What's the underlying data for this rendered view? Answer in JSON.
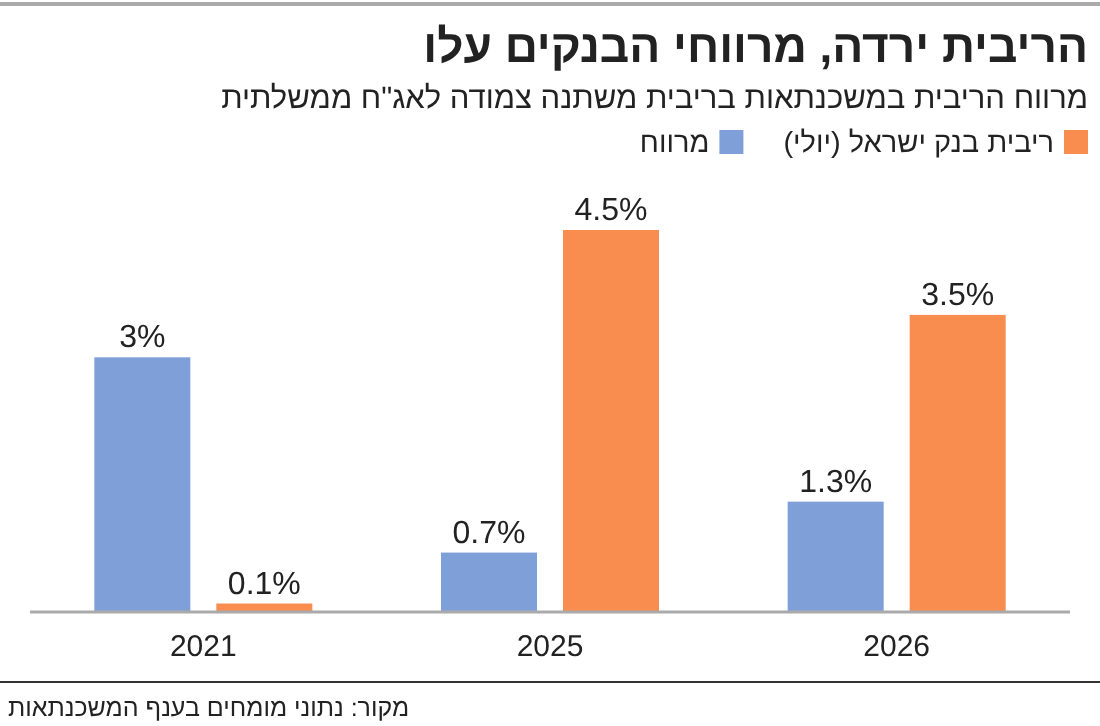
{
  "chart_data": {
    "type": "bar",
    "title": "הריבית ירדה, מרווחי הבנקים עלו",
    "subtitle": "מרווח הריבית במשכנתאות בריבית משתנה צמודה לאג\"ח ממשלתית",
    "categories": [
      "2021",
      "2025",
      "2026"
    ],
    "series": [
      {
        "name": "ריבית בנק ישראל (יולי)",
        "color": "#f98d4f",
        "values": [
          0.1,
          4.5,
          3.5
        ],
        "value_labels": [
          "0.1%",
          "4.5%",
          "3.5%"
        ]
      },
      {
        "name": "מרווח",
        "color": "#7f9fd9",
        "values": [
          3,
          0.7,
          1.3
        ],
        "value_labels": [
          "3%",
          "0.7%",
          "1.3%"
        ]
      }
    ],
    "legend": "top",
    "annotations": [
      "מקור: נתוני מומחים בענף המשכנתאות"
    ]
  }
}
